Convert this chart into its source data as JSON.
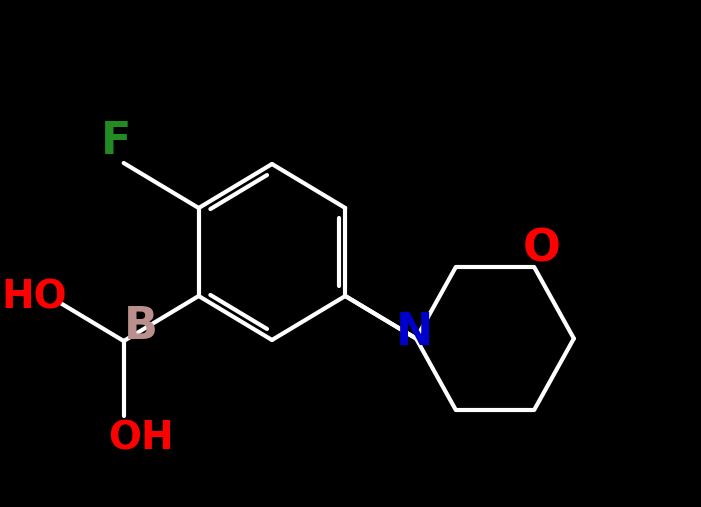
{
  "background_color": "#000000",
  "bond_color": "#ffffff",
  "bond_width": 3.0,
  "F_label": "F",
  "F_color": "#228B22",
  "B_label": "B",
  "B_color": "#bc8f8f",
  "HO_label": "HO",
  "HO_color": "#ff0000",
  "OH_label": "OH",
  "OH_color": "#ff0000",
  "N_label": "N",
  "N_color": "#0000cd",
  "O_label": "O",
  "O_color": "#ff0000",
  "font_size_atom": 32,
  "font_size_group": 28,
  "figsize": [
    7.01,
    5.07
  ],
  "dpi": 100
}
